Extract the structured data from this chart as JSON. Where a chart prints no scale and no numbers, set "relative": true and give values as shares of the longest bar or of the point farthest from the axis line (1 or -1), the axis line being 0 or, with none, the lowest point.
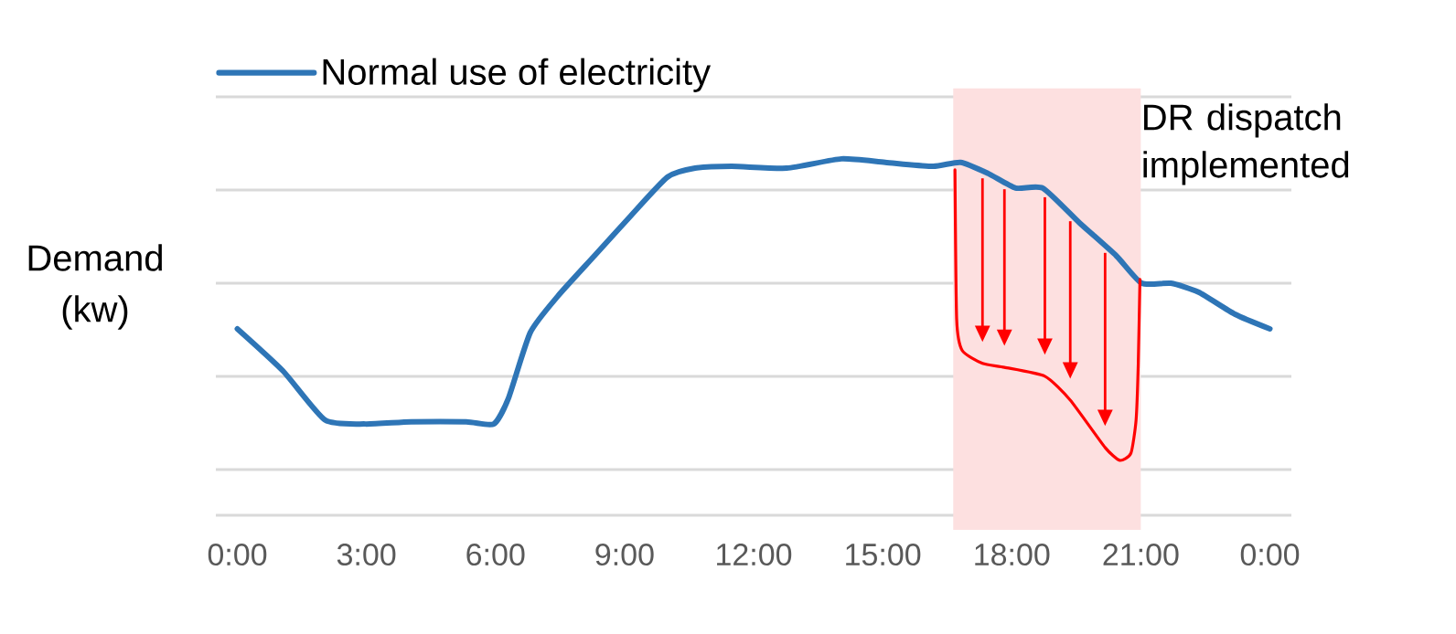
{
  "chart_data": {
    "type": "line",
    "relative": true,
    "ylabel": "Demand (kw)",
    "xlim": [
      -0.5,
      24.5
    ],
    "xticks": [
      {
        "value": 0,
        "label": "0:00"
      },
      {
        "value": 3,
        "label": "3:00"
      },
      {
        "value": 6,
        "label": "6:00"
      },
      {
        "value": 9,
        "label": "9:00"
      },
      {
        "value": 12,
        "label": "12:00"
      },
      {
        "value": 15,
        "label": "15:00"
      },
      {
        "value": 18,
        "label": "18:00"
      },
      {
        "value": 21,
        "label": "21:00"
      },
      {
        "value": 24,
        "label": "0:00"
      }
    ],
    "series": [
      {
        "name": "Normal use of electricity",
        "color": "#2e75b6",
        "x": [
          0,
          1.06,
          2.04,
          2.98,
          4.04,
          5.32,
          5.96,
          6.3,
          6.81,
          7.45,
          8.3,
          9.15,
          10.0,
          10.64,
          11.49,
          12.77,
          14.04,
          15.06,
          16.17,
          16.81,
          17.45,
          18.09,
          18.72,
          19.57,
          20.43,
          21.02,
          21.7,
          22.34,
          23.19,
          24.0
        ],
        "values": [
          0.523,
          0.405,
          0.267,
          0.256,
          0.262,
          0.262,
          0.256,
          0.328,
          0.513,
          0.615,
          0.728,
          0.841,
          0.949,
          0.974,
          0.979,
          0.974,
          1.0,
          0.99,
          0.979,
          0.99,
          0.959,
          0.918,
          0.918,
          0.821,
          0.728,
          0.651,
          0.651,
          0.626,
          0.564,
          0.523
        ]
      },
      {
        "color": "#ff0000",
        "x": [
          16.68,
          16.72,
          16.85,
          17.32,
          17.83,
          18.77,
          19.36,
          20.17,
          20.51,
          20.77,
          20.89,
          20.94,
          20.98
        ],
        "values": [
          0.969,
          0.549,
          0.462,
          0.426,
          0.415,
          0.39,
          0.323,
          0.19,
          0.154,
          0.174,
          0.267,
          0.421,
          0.662
        ]
      }
    ],
    "bands": [
      {
        "axis": "x",
        "from": 16.64,
        "to": 21.0,
        "label": "DR dispatch implemented",
        "color": "#fde0e0"
      }
    ],
    "grid": "y",
    "legend": "top left",
    "tick_labels": "x"
  }
}
